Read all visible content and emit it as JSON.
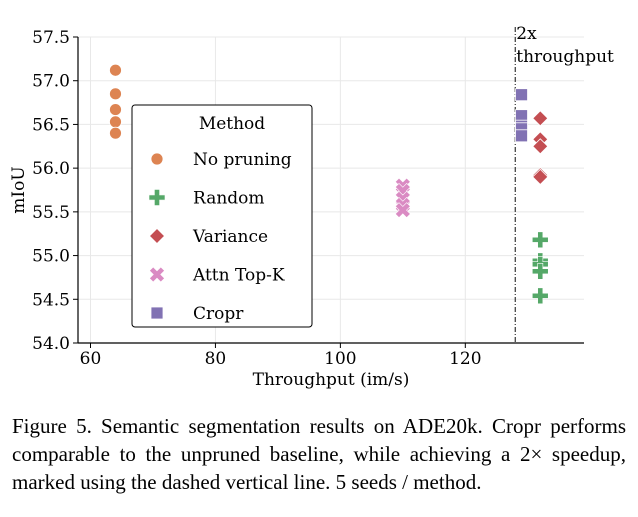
{
  "chart_data": {
    "type": "scatter",
    "xlabel": "Throughput (im/s)",
    "ylabel": "mIoU",
    "xlim": [
      58,
      139
    ],
    "ylim": [
      54.0,
      57.5
    ],
    "xticks": [
      60,
      80,
      100,
      120
    ],
    "yticks": [
      54.0,
      54.5,
      55.0,
      55.5,
      56.0,
      56.5,
      57.0,
      57.5
    ],
    "grid": true,
    "legend": {
      "title": "Method",
      "placement": "center-left"
    },
    "annotation": {
      "text_line1": "2x",
      "text_line2": "throughput",
      "x": 128
    },
    "series": [
      {
        "name": "No pruning",
        "marker": "circle",
        "color": "#dd8452",
        "points": [
          [
            64,
            57.12
          ],
          [
            64,
            56.85
          ],
          [
            64,
            56.67
          ],
          [
            64,
            56.53
          ],
          [
            64,
            56.4
          ]
        ]
      },
      {
        "name": "Random",
        "marker": "plus",
        "color": "#55a868",
        "points": [
          [
            132,
            55.18
          ],
          [
            132,
            54.94
          ],
          [
            132,
            54.9
          ],
          [
            132,
            54.82
          ],
          [
            132,
            54.54
          ]
        ]
      },
      {
        "name": "Variance",
        "marker": "diamond",
        "color": "#c44e52",
        "points": [
          [
            132,
            56.57
          ],
          [
            132,
            56.33
          ],
          [
            132,
            56.25
          ],
          [
            132,
            55.92
          ],
          [
            132,
            55.9
          ]
        ]
      },
      {
        "name": "Attn Top-K",
        "marker": "x",
        "color": "#da8bc3",
        "points": [
          [
            110,
            55.8
          ],
          [
            110,
            55.74
          ],
          [
            110,
            55.65
          ],
          [
            110,
            55.58
          ],
          [
            110,
            55.52
          ]
        ]
      },
      {
        "name": "Cropr",
        "marker": "square",
        "color": "#8172b3",
        "points": [
          [
            129,
            56.84
          ],
          [
            129,
            56.6
          ],
          [
            129,
            56.48
          ],
          [
            129,
            56.45
          ],
          [
            129,
            56.37
          ]
        ]
      }
    ]
  },
  "caption": "Figure 5. Semantic segmentation results on ADE20k. Cropr performs comparable to the unpruned baseline, while achieving a 2× speedup, marked using the dashed vertical line. 5 seeds / method."
}
